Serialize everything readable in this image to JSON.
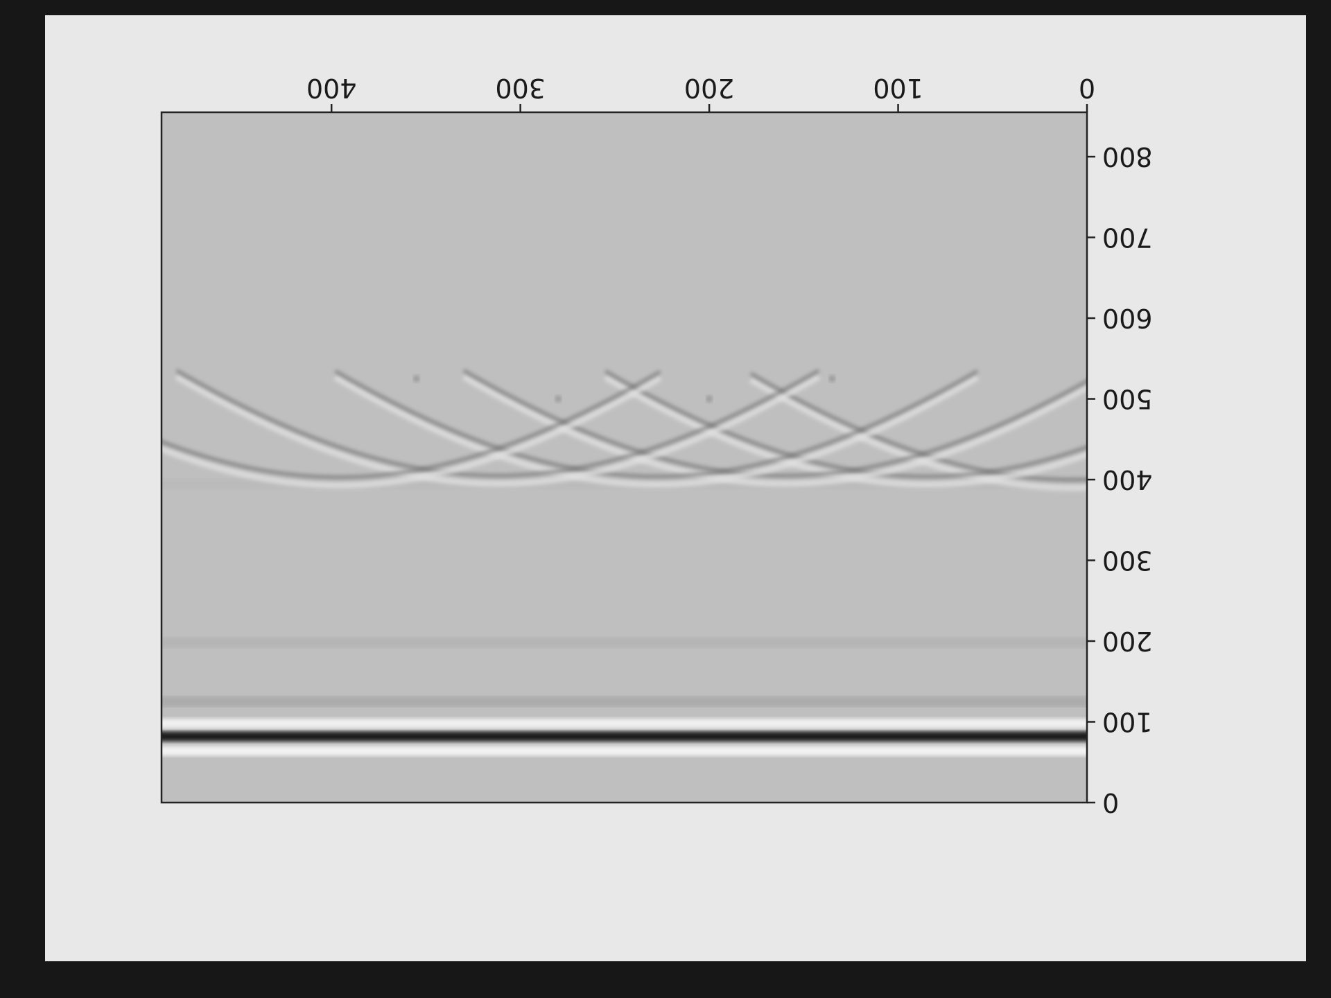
{
  "chart_data": {
    "type": "heatmap",
    "title": "",
    "xlabel": "",
    "ylabel": "",
    "orientation": "rotated 180 degrees (image displayed upside down)",
    "colormap": "grayscale",
    "grid": false,
    "legend": "none",
    "xlim": [
      0,
      490
    ],
    "ylim": [
      0,
      855
    ],
    "x_ticks": [
      0,
      100,
      200,
      300,
      400
    ],
    "y_ticks": [
      0,
      100,
      200,
      300,
      400,
      500,
      600,
      700,
      800
    ],
    "x_tick_labels": [
      "0",
      "100",
      "200",
      "300",
      "400"
    ],
    "y_tick_labels": [
      "0",
      "100",
      "200",
      "300",
      "400",
      "500",
      "600",
      "700",
      "800"
    ],
    "background_level": 0.75,
    "horizontal_bands": [
      {
        "y": 82,
        "value": 0.1,
        "note": "strong direct-arrival reflection"
      },
      {
        "y": 64,
        "value": 0.95
      },
      {
        "y": 98,
        "value": 0.94
      },
      {
        "y": 125,
        "value": 0.62
      },
      {
        "y": 198,
        "value": 0.68
      },
      {
        "y": 395,
        "value": 0.72
      }
    ],
    "hyperbolas": [
      {
        "apex_x": 8,
        "apex_y": 400
      },
      {
        "apex_x": 85,
        "apex_y": 404
      },
      {
        "apex_x": 160,
        "apex_y": 405
      },
      {
        "apex_x": 228,
        "apex_y": 404
      },
      {
        "apex_x": 312,
        "apex_y": 405
      },
      {
        "apex_x": 396,
        "apex_y": 403
      }
    ],
    "hyperbola_intersections": [
      {
        "x": 135,
        "y": 525
      },
      {
        "x": 200,
        "y": 500
      },
      {
        "x": 280,
        "y": 500
      },
      {
        "x": 355,
        "y": 525
      }
    ]
  }
}
